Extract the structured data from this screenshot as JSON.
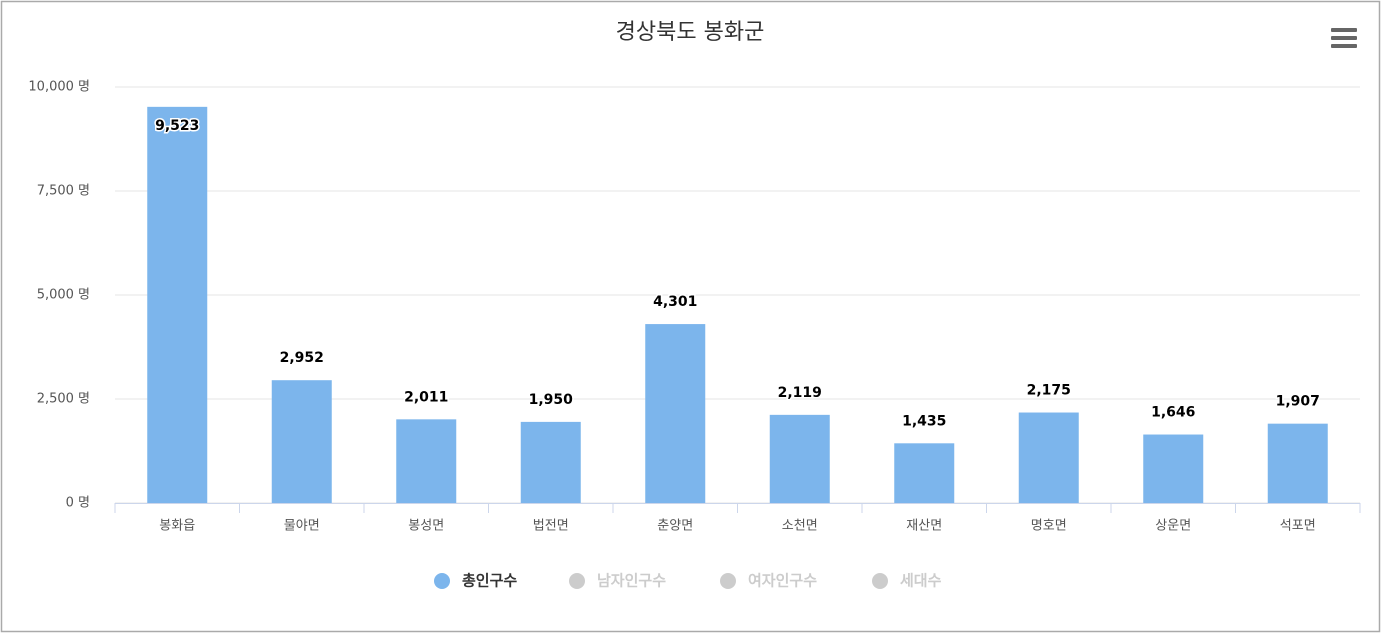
{
  "chart_data": {
    "type": "bar",
    "title": "경상북도 봉화군",
    "categories": [
      "봉화읍",
      "물야면",
      "봉성면",
      "법전면",
      "춘양면",
      "소천면",
      "재산면",
      "명호면",
      "상운면",
      "석포면"
    ],
    "series": [
      {
        "name": "총인구수",
        "color": "#7cb5ec",
        "values": [
          9523,
          2952,
          2011,
          1950,
          4301,
          2119,
          1435,
          2175,
          1646,
          1907
        ],
        "value_labels": [
          "9,523",
          "2,952",
          "2,011",
          "1,950",
          "4,301",
          "2,119",
          "1,435",
          "2,175",
          "1,646",
          "1,907"
        ]
      }
    ],
    "hidden_series": [
      {
        "name": "남자인구수",
        "color": "#cccccc"
      },
      {
        "name": "여자인구수",
        "color": "#cccccc"
      },
      {
        "name": "세대수",
        "color": "#cccccc"
      }
    ],
    "ylim": [
      0,
      10000
    ],
    "yticks": [
      {
        "value": 0,
        "label": "0 명"
      },
      {
        "value": 2500,
        "label": "2,500 명"
      },
      {
        "value": 5000,
        "label": "5,000 명"
      },
      {
        "value": 7500,
        "label": "7,500 명"
      },
      {
        "value": 10000,
        "label": "10,000 명"
      }
    ],
    "grid": true
  }
}
